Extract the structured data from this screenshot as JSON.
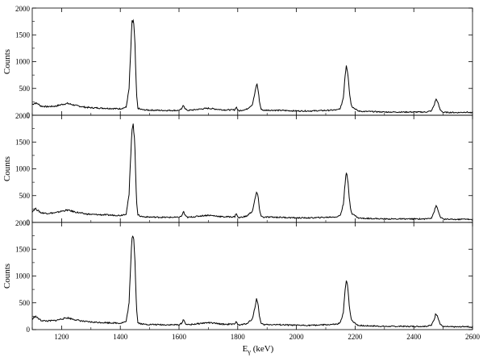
{
  "chart_data": [
    {
      "type": "line",
      "title": "",
      "xlabel": "",
      "ylabel": "Counts",
      "xlim": [
        1100,
        2600
      ],
      "ylim": [
        0,
        2000
      ],
      "xticks": [],
      "yticks": [
        "0",
        "500",
        "1000",
        "1500",
        "2000"
      ],
      "grid": false,
      "series": [
        {
          "x": [
            1100,
            1110,
            1120,
            1130,
            1150,
            1180,
            1200,
            1220,
            1250,
            1280,
            1300,
            1350,
            1400,
            1420,
            1430,
            1435,
            1440,
            1445,
            1450,
            1455,
            1460,
            1470,
            1480,
            1500,
            1550,
            1600,
            1610,
            1615,
            1620,
            1625,
            1630,
            1650,
            1680,
            1700,
            1750,
            1790,
            1795,
            1800,
            1805,
            1810,
            1830,
            1850,
            1860,
            1865,
            1870,
            1875,
            1880,
            1890,
            1900,
            1950,
            2000,
            2050,
            2100,
            2140,
            2150,
            2160,
            2165,
            2170,
            2175,
            2180,
            2185,
            2190,
            2200,
            2210,
            2230,
            2250,
            2300,
            2350,
            2400,
            2440,
            2460,
            2470,
            2475,
            2480,
            2485,
            2490,
            2500,
            2550,
            2580,
            2600
          ],
          "y": [
            200,
            230,
            210,
            170,
            160,
            170,
            200,
            220,
            180,
            150,
            140,
            130,
            120,
            150,
            500,
            1150,
            1730,
            1780,
            1300,
            400,
            130,
            110,
            100,
            95,
            90,
            90,
            120,
            200,
            130,
            100,
            90,
            100,
            120,
            130,
            100,
            100,
            160,
            95,
            80,
            90,
            110,
            200,
            450,
            600,
            450,
            220,
            110,
            90,
            95,
            90,
            80,
            80,
            90,
            100,
            130,
            330,
            700,
            950,
            800,
            480,
            240,
            160,
            120,
            80,
            70,
            70,
            60,
            60,
            60,
            60,
            80,
            200,
            300,
            270,
            180,
            100,
            55,
            50,
            60,
            40
          ]
        }
      ]
    },
    {
      "type": "line",
      "title": "",
      "xlabel": "",
      "ylabel": "Counts",
      "xlim": [
        1100,
        2600
      ],
      "ylim": [
        0,
        2000
      ],
      "xticks": [],
      "yticks": [
        "0",
        "500",
        "1000",
        "1500",
        "2000"
      ],
      "grid": false,
      "series": [
        {
          "x": [
            1100,
            1110,
            1120,
            1130,
            1150,
            1180,
            1200,
            1220,
            1250,
            1280,
            1300,
            1350,
            1400,
            1420,
            1430,
            1435,
            1440,
            1445,
            1450,
            1455,
            1460,
            1470,
            1480,
            1500,
            1550,
            1600,
            1610,
            1615,
            1620,
            1625,
            1630,
            1650,
            1680,
            1700,
            1750,
            1790,
            1795,
            1800,
            1805,
            1810,
            1830,
            1850,
            1860,
            1865,
            1870,
            1875,
            1880,
            1890,
            1900,
            1950,
            2000,
            2050,
            2100,
            2140,
            2150,
            2160,
            2165,
            2170,
            2175,
            2180,
            2185,
            2190,
            2200,
            2210,
            2230,
            2250,
            2300,
            2350,
            2400,
            2440,
            2460,
            2470,
            2475,
            2480,
            2485,
            2490,
            2500,
            2550,
            2580,
            2600
          ],
          "y": [
            200,
            260,
            220,
            180,
            170,
            180,
            210,
            230,
            190,
            160,
            150,
            140,
            130,
            160,
            520,
            1200,
            1780,
            1820,
            1350,
            420,
            140,
            115,
            105,
            100,
            95,
            95,
            125,
            210,
            140,
            105,
            95,
            105,
            125,
            135,
            105,
            105,
            180,
            100,
            85,
            95,
            115,
            210,
            460,
            580,
            440,
            220,
            115,
            95,
            100,
            95,
            85,
            85,
            95,
            105,
            140,
            340,
            700,
            930,
            780,
            470,
            240,
            165,
            125,
            85,
            75,
            75,
            65,
            65,
            65,
            65,
            85,
            210,
            310,
            270,
            180,
            105,
            60,
            55,
            65,
            45
          ]
        }
      ]
    },
    {
      "type": "line",
      "title": "",
      "xlabel": "E_γ (keV)",
      "ylabel": "Counts",
      "xlim": [
        1100,
        2600
      ],
      "ylim": [
        0,
        2000
      ],
      "xticks": [
        "1200",
        "1400",
        "1600",
        "1800",
        "2000",
        "2200",
        "2400",
        "2600"
      ],
      "yticks": [
        "0",
        "500",
        "1000",
        "1500",
        "2000"
      ],
      "grid": false,
      "series": [
        {
          "x": [
            1100,
            1110,
            1120,
            1130,
            1150,
            1180,
            1200,
            1220,
            1250,
            1280,
            1300,
            1350,
            1400,
            1420,
            1430,
            1435,
            1440,
            1445,
            1450,
            1455,
            1460,
            1470,
            1480,
            1500,
            1550,
            1600,
            1610,
            1615,
            1620,
            1625,
            1630,
            1650,
            1680,
            1700,
            1750,
            1790,
            1795,
            1800,
            1805,
            1810,
            1830,
            1850,
            1860,
            1865,
            1870,
            1875,
            1880,
            1890,
            1900,
            1950,
            2000,
            2050,
            2100,
            2140,
            2150,
            2160,
            2165,
            2170,
            2175,
            2180,
            2185,
            2190,
            2200,
            2210,
            2230,
            2250,
            2300,
            2350,
            2400,
            2440,
            2460,
            2470,
            2475,
            2480,
            2485,
            2490,
            2500,
            2550,
            2580,
            2600
          ],
          "y": [
            190,
            250,
            210,
            170,
            160,
            170,
            200,
            220,
            180,
            150,
            140,
            130,
            120,
            150,
            500,
            1150,
            1740,
            1780,
            1300,
            400,
            130,
            110,
            100,
            95,
            90,
            90,
            120,
            200,
            130,
            100,
            90,
            100,
            120,
            130,
            100,
            100,
            170,
            95,
            80,
            90,
            110,
            200,
            450,
            590,
            440,
            220,
            110,
            90,
            95,
            90,
            80,
            80,
            90,
            100,
            130,
            330,
            680,
            920,
            780,
            470,
            240,
            160,
            120,
            80,
            70,
            70,
            60,
            60,
            60,
            60,
            80,
            200,
            300,
            270,
            180,
            100,
            55,
            50,
            60,
            40
          ]
        }
      ]
    }
  ],
  "axes": {
    "x_title_main": "E",
    "x_title_sub": "γ",
    "x_title_unit": " (keV)"
  },
  "colors": {
    "line": "#000000",
    "axis": "#000000",
    "background": "#ffffff"
  }
}
